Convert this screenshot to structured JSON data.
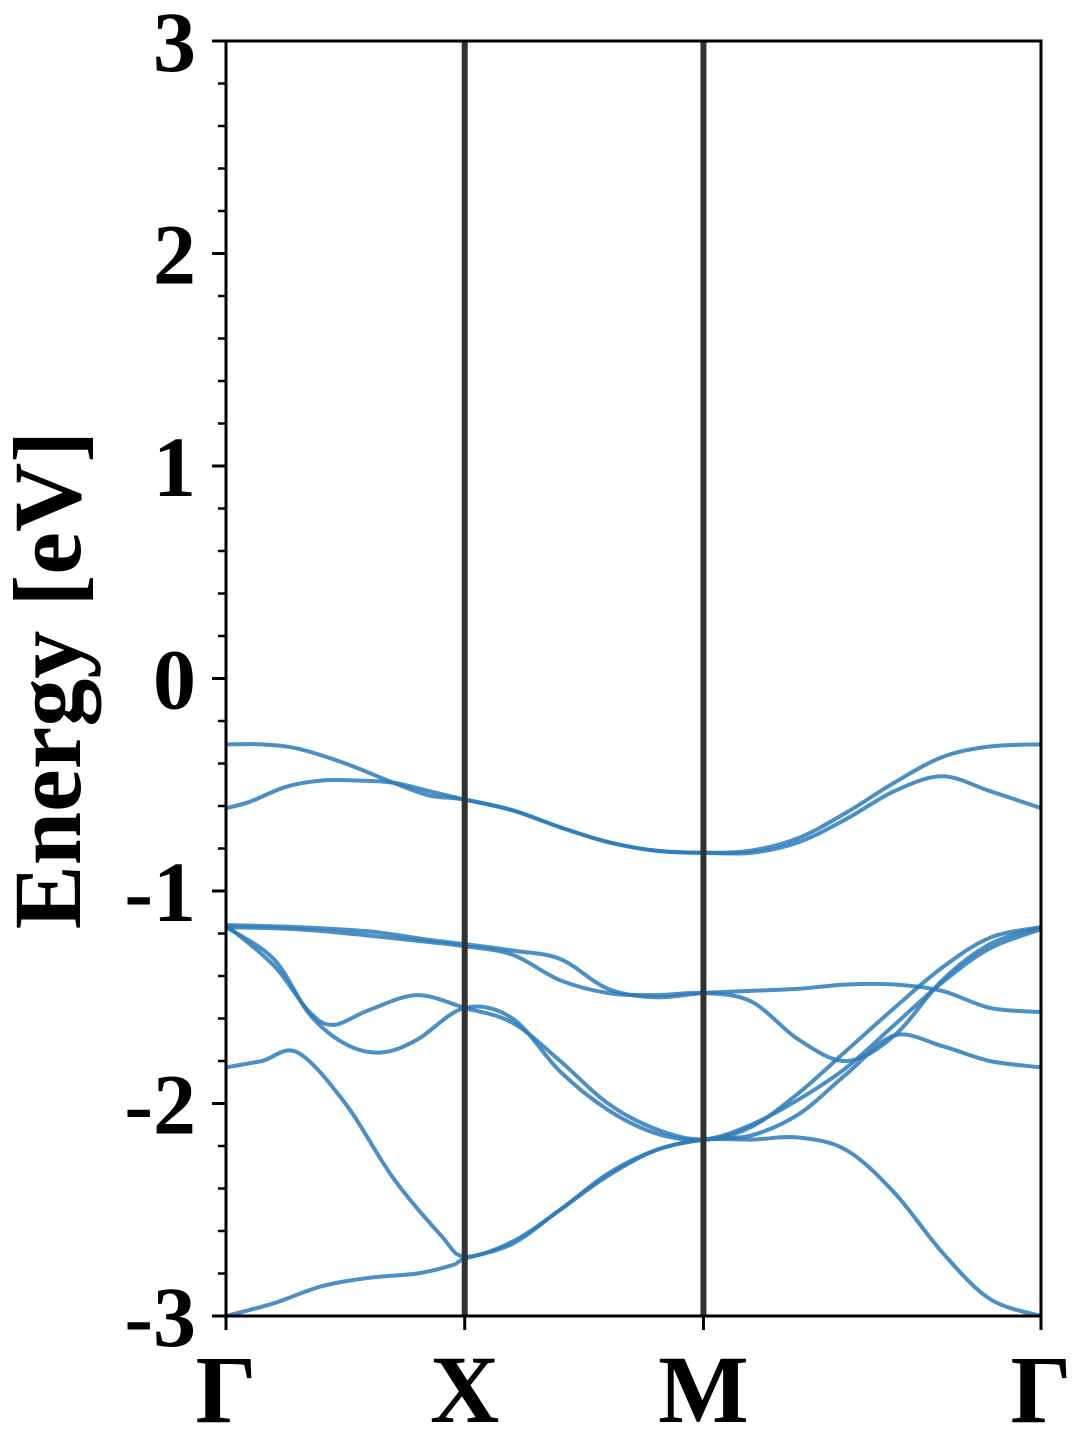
{
  "chart_data": {
    "type": "line",
    "title": "",
    "xlabel": "",
    "ylabel": "Energy [eV]",
    "ylim": [
      -3,
      3
    ],
    "yticks": [
      -3,
      -2,
      -1,
      0,
      1,
      2,
      3
    ],
    "ytick_labels": [
      "-3",
      "-2",
      "-1",
      "0",
      "1",
      "2",
      "3"
    ],
    "x_path_ticks": [
      {
        "label": "Γ",
        "pos": 0
      },
      {
        "label": "X",
        "pos": 1
      },
      {
        "label": "M",
        "pos": 2
      },
      {
        "label": "Γ",
        "pos": 3.414
      }
    ],
    "grid": false,
    "legend": "none",
    "band_color": "#2b7bba",
    "vline_color": "#333333",
    "series": [
      {
        "x": [
          0,
          0.15,
          0.3,
          0.5,
          0.7,
          0.85,
          1.0,
          1.2,
          1.4,
          1.6,
          1.8,
          2.0,
          2.2,
          2.4,
          2.6,
          2.8,
          3.0,
          3.2,
          3.414
        ],
        "y": [
          -0.31,
          -0.31,
          -0.33,
          -0.4,
          -0.49,
          -0.55,
          -0.57,
          -0.62,
          -0.7,
          -0.77,
          -0.81,
          -0.82,
          -0.81,
          -0.75,
          -0.63,
          -0.49,
          -0.37,
          -0.32,
          -0.31
        ]
      },
      {
        "x": [
          0,
          0.1,
          0.25,
          0.4,
          0.55,
          0.7,
          0.85,
          1.0,
          1.2,
          1.4,
          1.6,
          1.8,
          2.0,
          2.2,
          2.4,
          2.6,
          2.8,
          3.0,
          3.2,
          3.414
        ],
        "y": [
          -0.61,
          -0.58,
          -0.51,
          -0.48,
          -0.48,
          -0.49,
          -0.53,
          -0.57,
          -0.62,
          -0.7,
          -0.77,
          -0.81,
          -0.82,
          -0.82,
          -0.77,
          -0.66,
          -0.53,
          -0.46,
          -0.53,
          -0.61
        ]
      },
      {
        "x": [
          0,
          0.3,
          0.6,
          0.85,
          1.0,
          1.2,
          1.4,
          1.6,
          1.8,
          2.0,
          2.2,
          2.4,
          2.6,
          2.8,
          3.0,
          3.2,
          3.414
        ],
        "y": [
          -1.16,
          -1.17,
          -1.19,
          -1.23,
          -1.25,
          -1.28,
          -1.32,
          -1.46,
          -1.5,
          -1.48,
          -1.47,
          -1.46,
          -1.44,
          -1.44,
          -1.47,
          -1.55,
          -1.57
        ]
      },
      {
        "x": [
          0,
          0.3,
          0.6,
          0.85,
          1.0,
          1.2,
          1.4,
          1.6,
          1.8,
          2.0,
          2.2,
          2.4,
          2.6,
          2.8,
          3.0,
          3.2,
          3.414
        ],
        "y": [
          -1.17,
          -1.18,
          -1.21,
          -1.24,
          -1.26,
          -1.3,
          -1.42,
          -1.48,
          -1.49,
          -1.48,
          -1.52,
          -1.7,
          -1.8,
          -1.68,
          -1.42,
          -1.25,
          -1.17
        ]
      },
      {
        "x": [
          0,
          0.2,
          0.35,
          0.45,
          0.6,
          0.8,
          1.0,
          1.2,
          1.4,
          1.6,
          1.8,
          2.0,
          2.2,
          2.4,
          2.6,
          2.8,
          3.0,
          3.2,
          3.414
        ],
        "y": [
          -1.16,
          -1.35,
          -1.57,
          -1.63,
          -1.56,
          -1.49,
          -1.55,
          -1.62,
          -1.8,
          -2.0,
          -2.12,
          -2.17,
          -2.11,
          -1.95,
          -1.75,
          -1.55,
          -1.36,
          -1.22,
          -1.17
        ]
      },
      {
        "x": [
          0,
          0.2,
          0.35,
          0.5,
          0.65,
          0.8,
          1.0,
          1.2,
          1.4,
          1.6,
          1.8,
          2.0,
          2.2,
          2.4,
          2.6,
          2.8,
          3.0,
          3.2,
          3.414
        ],
        "y": [
          -1.17,
          -1.32,
          -1.58,
          -1.72,
          -1.76,
          -1.7,
          -1.55,
          -1.6,
          -1.85,
          -2.03,
          -2.14,
          -2.17,
          -2.1,
          -1.98,
          -1.83,
          -1.63,
          -1.43,
          -1.27,
          -1.18
        ]
      },
      {
        "x": [
          0,
          0.15,
          0.3,
          0.5,
          0.7,
          0.9,
          1.0,
          1.2,
          1.4,
          1.6,
          1.8,
          2.0,
          2.2,
          2.4,
          2.6,
          2.8,
          3.0,
          3.2,
          3.414
        ],
        "y": [
          -1.83,
          -1.8,
          -1.76,
          -2.0,
          -2.35,
          -2.62,
          -2.72,
          -2.65,
          -2.5,
          -2.33,
          -2.22,
          -2.17,
          -2.17,
          -2.16,
          -2.22,
          -2.42,
          -2.7,
          -2.92,
          -3.0
        ]
      },
      {
        "x": [
          0,
          0.2,
          0.4,
          0.6,
          0.8,
          0.95,
          1.0,
          1.2,
          1.4,
          1.6,
          1.8,
          2.0,
          2.2,
          2.4,
          2.6,
          2.8,
          3.0,
          3.2,
          3.414
        ],
        "y": [
          -3.0,
          -2.94,
          -2.86,
          -2.82,
          -2.8,
          -2.76,
          -2.73,
          -2.66,
          -2.5,
          -2.34,
          -2.22,
          -2.17,
          -2.15,
          -2.05,
          -1.86,
          -1.68,
          -1.73,
          -1.8,
          -1.83
        ]
      }
    ]
  }
}
